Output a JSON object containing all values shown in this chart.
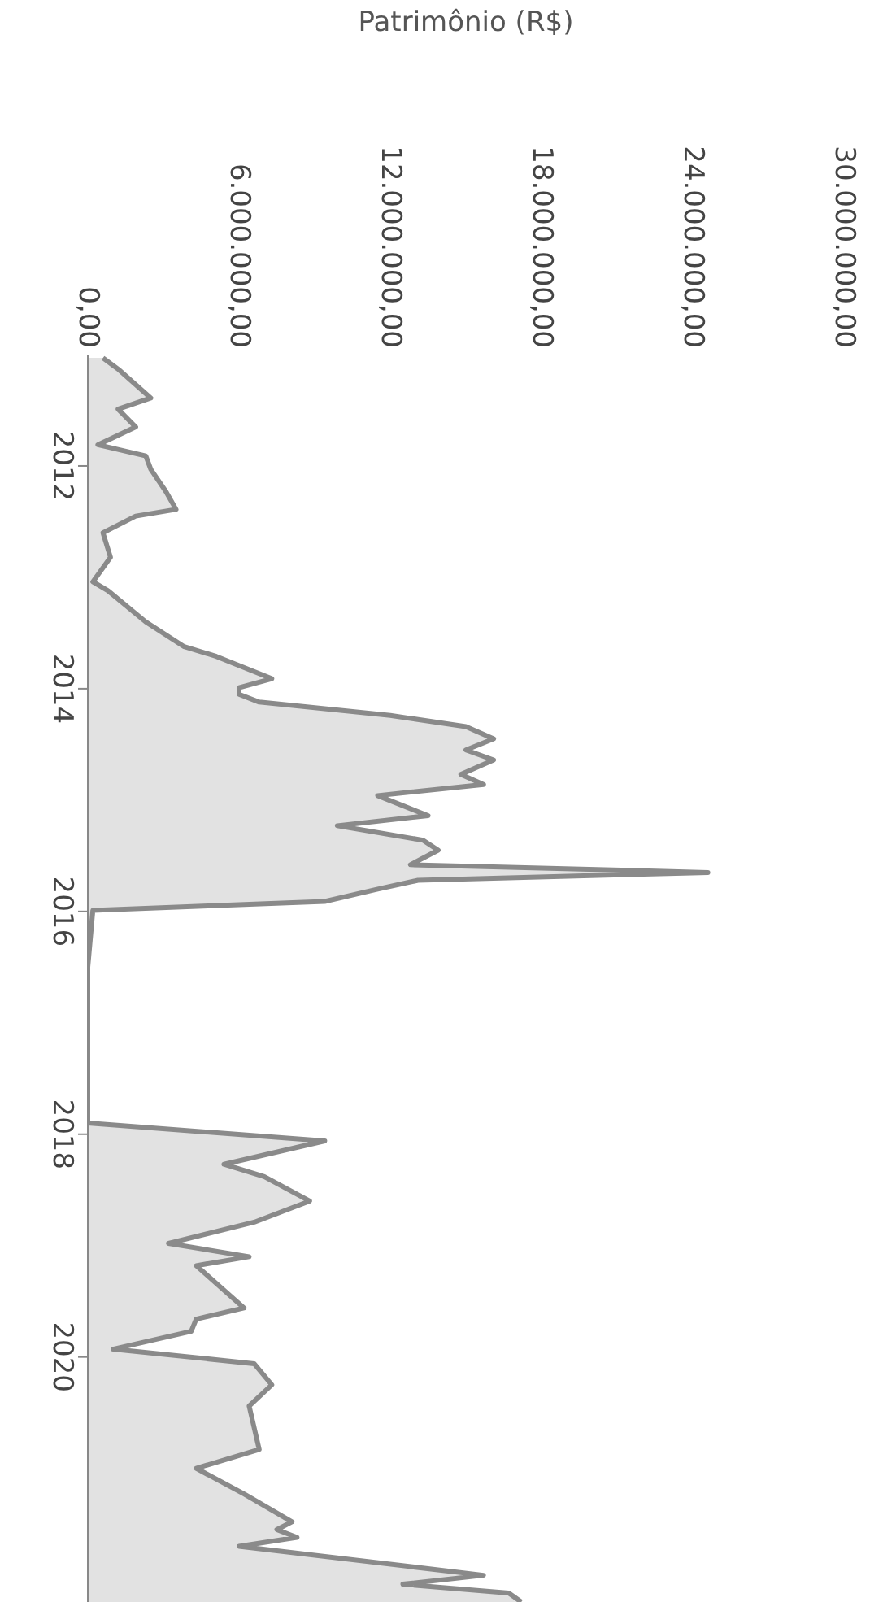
{
  "chart_data": {
    "type": "area",
    "orientation": "horizontal",
    "xlabel": "Patrimônio (R$)",
    "x": [
      2011.03,
      2011.13,
      2011.39,
      2011.49,
      2011.65,
      2011.81,
      2011.91,
      2012.03,
      2012.23,
      2012.39,
      2012.45,
      2012.6,
      2012.82,
      2013.04,
      2013.12,
      2013.4,
      2013.62,
      2013.71,
      2013.91,
      2013.99,
      2014.05,
      2014.12,
      2014.24,
      2014.34,
      2014.45,
      2014.55,
      2014.64,
      2014.77,
      2014.86,
      2014.96,
      2015.14,
      2015.23,
      2015.36,
      2015.45,
      2015.58,
      2015.65,
      2015.72,
      2015.8,
      2015.91,
      2015.99,
      2016.5,
      2017.0,
      2017.5,
      2017.9,
      2018.06,
      2018.27,
      2018.38,
      2018.6,
      2018.79,
      2018.98,
      2019.1,
      2019.18,
      2019.56,
      2019.66,
      2019.77,
      2019.93,
      2020.06,
      2020.25,
      2020.44,
      2020.83,
      2021.0,
      2021.23,
      2021.48,
      2021.55,
      2021.62,
      2021.7,
      2021.96,
      2022.04,
      2022.12,
      2022.2
    ],
    "series": [
      {
        "color": "#8a8a8a",
        "values": [
          600000,
          1200000,
          2500000,
          1200000,
          1900000,
          400000,
          2300000,
          2500000,
          3100000,
          3500000,
          1900000,
          600000,
          900000,
          200000,
          800000,
          2300000,
          3800000,
          5100000,
          7300000,
          6000000,
          6000000,
          6800000,
          12000000,
          15000000,
          16100000,
          15000000,
          16100000,
          14800000,
          15700000,
          11500000,
          13500000,
          9900000,
          13300000,
          13900000,
          12800000,
          24600000,
          13100000,
          11500000,
          9400000,
          200000,
          0,
          0,
          0,
          0,
          9400000,
          5400000,
          7000000,
          8800000,
          6600000,
          3200000,
          6400000,
          4300000,
          6200000,
          4300000,
          4100000,
          1000000,
          6600000,
          7300000,
          6400000,
          6800000,
          4300000,
          6200000,
          8100000,
          7500000,
          8300000,
          6000000,
          15700000,
          12500000,
          16700000,
          17200000
        ]
      }
    ],
    "ylim": [
      2022.2,
      2011
    ],
    "yticks": [
      2012,
      2014,
      2016,
      2018,
      2020
    ],
    "xlim": [
      0,
      30000000
    ],
    "xticks": [
      {
        "value": 0,
        "label": "0,00"
      },
      {
        "value": 6000000,
        "label": "6.000.000,00"
      },
      {
        "value": 12000000,
        "label": "12.000.000,00"
      },
      {
        "value": 18000000,
        "label": "18.000.000,00"
      },
      {
        "value": 24000000,
        "label": "24.000.000,00"
      },
      {
        "value": 30000000,
        "label": "30.000.000,00"
      }
    ],
    "grid": false,
    "legend": false
  }
}
